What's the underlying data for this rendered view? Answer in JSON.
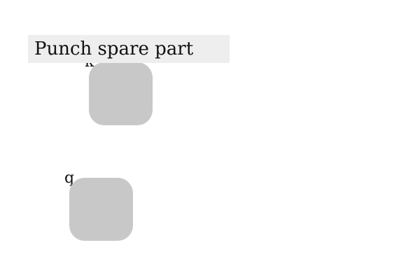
{
  "title": "Punch spare part",
  "tiles": [
    {
      "label": "k"
    },
    {
      "label": "q"
    }
  ],
  "colors": {
    "tile": "#c8c8c8",
    "title_background": "#eeeeee",
    "text": "#111111"
  }
}
